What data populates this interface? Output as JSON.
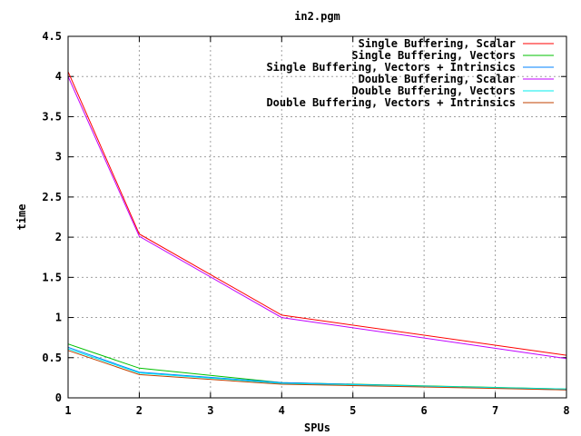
{
  "chart_data": {
    "type": "line",
    "title": "in2.pgm",
    "xlabel": "SPUs",
    "ylabel": "time",
    "x": [
      1,
      2,
      4,
      8
    ],
    "xlim": [
      1,
      8
    ],
    "ylim": [
      0,
      4.5
    ],
    "xticks": [
      1,
      2,
      3,
      4,
      5,
      6,
      7,
      8
    ],
    "yticks": [
      0,
      0.5,
      1,
      1.5,
      2,
      2.5,
      3,
      3.5,
      4,
      4.5
    ],
    "grid": true,
    "legend_position": "top-right",
    "series": [
      {
        "name": "Single Buffering, Scalar",
        "color": "#ff0000",
        "values": [
          4.06,
          2.04,
          1.03,
          0.53
        ]
      },
      {
        "name": "Single Buffering, Vectors",
        "color": "#00c000",
        "values": [
          0.67,
          0.37,
          0.19,
          0.11
        ]
      },
      {
        "name": "Single Buffering, Vectors + Intrinsics",
        "color": "#0080ff",
        "values": [
          0.63,
          0.32,
          0.19,
          0.1
        ]
      },
      {
        "name": "Double Buffering, Scalar",
        "color": "#c000ff",
        "values": [
          4.0,
          2.01,
          1.0,
          0.49
        ]
      },
      {
        "name": "Double Buffering, Vectors",
        "color": "#00eeee",
        "values": [
          0.61,
          0.31,
          0.18,
          0.11
        ]
      },
      {
        "name": "Double Buffering, Vectors + Intrinsics",
        "color": "#c04000",
        "values": [
          0.59,
          0.29,
          0.17,
          0.1
        ]
      }
    ]
  }
}
